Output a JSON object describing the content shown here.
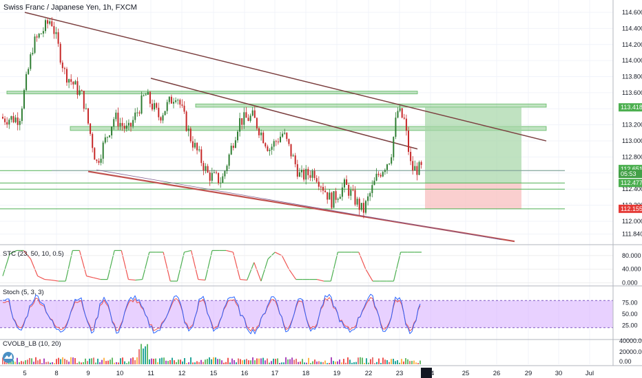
{
  "title": "Swiss Franc / Japanese Yen, 1h, FXCM",
  "colors": {
    "up": "#26a69a",
    "down": "#ef5350",
    "bull_candle": "#2e7d32",
    "bear_candle": "#c62828",
    "trendline": "#7b3f3f",
    "support_line": "#c0504d",
    "zone": "#4caf50",
    "target_zone": "#a5d6a7",
    "stop_zone": "#f8bbbb",
    "stc_up": "#4caf50",
    "stc_down": "#ef5350",
    "stoch_k": "#2962ff",
    "stoch_d": "#ef5350",
    "stoch_band": "#d9b3ff"
  },
  "chart_data": [
    {
      "type": "candlestick",
      "title": "Swiss Franc / Japanese Yen, 1h, FXCM",
      "x_tick_labels": [
        "5",
        "8",
        "9",
        "10",
        "11",
        "12",
        "15",
        "16",
        "17",
        "18",
        "19",
        "22",
        "23",
        "24",
        "25",
        "26",
        "29",
        "30",
        "Jul"
      ],
      "y_tick_labels": [
        "114.600",
        "114.400",
        "114.200",
        "114.000",
        "113.800",
        "113.600",
        "113.400",
        "113.200",
        "113.000",
        "112.800",
        "112.600",
        "112.400",
        "112.200",
        "112.000",
        "111.840"
      ],
      "ylim": [
        111.76,
        114.72
      ],
      "anchors": [
        [
          "5",
          113.28
        ],
        [
          "5",
          114.2
        ],
        [
          "8",
          114.52
        ],
        [
          "8",
          113.85
        ],
        [
          "9",
          113.55
        ],
        [
          "9",
          112.72
        ],
        [
          "10",
          113.3
        ],
        [
          "10",
          113.12
        ],
        [
          "11",
          113.58
        ],
        [
          "11",
          113.3
        ],
        [
          "12",
          113.6
        ],
        [
          "12",
          113.05
        ],
        [
          "15",
          112.58
        ],
        [
          "15",
          112.5
        ],
        [
          "16",
          113.25
        ],
        [
          "16",
          113.3
        ],
        [
          "17",
          112.9
        ],
        [
          "17",
          113.1
        ],
        [
          "18",
          112.55
        ],
        [
          "18",
          112.62
        ],
        [
          "19",
          112.25
        ],
        [
          "19",
          112.45
        ],
        [
          "22",
          112.12
        ],
        [
          "22",
          112.55
        ],
        [
          "23",
          112.8
        ],
        [
          "23",
          113.38
        ],
        [
          "23",
          113.25
        ],
        [
          "23",
          112.65
        ]
      ],
      "trendlines": [
        {
          "from": [
            "5",
            114.6
          ],
          "to": [
            "29",
            113.0
          ]
        },
        {
          "from": [
            "11",
            113.78
          ],
          "to": [
            "23",
            112.9
          ]
        },
        {
          "from": [
            "9",
            112.62
          ],
          "to": [
            "26",
            111.75
          ]
        }
      ],
      "horizontal_levels": [
        112.63,
        112.477,
        112.4,
        112.155
      ],
      "zones": [
        {
          "from": 113.42,
          "to": 113.46,
          "x_from": "15",
          "x_to": "29"
        },
        {
          "from": 113.13,
          "to": 113.18,
          "x_from": "9",
          "x_to": "29"
        },
        {
          "from": 113.6,
          "to": 113.62,
          "x_from": "5",
          "x_to": "23"
        }
      ],
      "position": {
        "entry": 112.477,
        "target": 113.418,
        "stop": 112.155,
        "x_from": "23",
        "x_to": "26"
      },
      "price_tags": [
        {
          "price": 113.418,
          "label": "113.418",
          "color": "#4caf50"
        },
        {
          "price": 112.651,
          "label": "112.651",
          "color": "#4caf50"
        },
        {
          "price": 112.59,
          "label": "05:53",
          "color": "#43a047"
        },
        {
          "price": 112.477,
          "label": "112.477",
          "color": "#4caf50"
        },
        {
          "price": 112.155,
          "label": "112.155",
          "color": "#e53935"
        }
      ]
    },
    {
      "type": "line",
      "title": "STC (23, 50, 10, 0.5)",
      "y_tick_labels": [
        "80.000",
        "40.000",
        "0.000"
      ],
      "ylim": [
        -5,
        100
      ],
      "values": [
        20,
        85,
        95,
        95,
        70,
        20,
        10,
        8,
        5,
        5,
        95,
        95,
        20,
        15,
        10,
        10,
        95,
        95,
        10,
        8,
        10,
        90,
        90,
        90,
        5,
        5,
        90,
        95,
        10,
        8,
        95,
        95,
        95,
        90,
        10,
        8,
        60,
        5,
        70,
        90,
        80,
        40,
        10,
        10,
        10,
        10,
        5,
        5,
        90,
        90,
        90,
        90,
        40,
        5,
        5,
        5,
        5,
        90,
        90,
        90,
        90
      ]
    },
    {
      "type": "line",
      "title": "Stoch (5, 3, 3)",
      "y_tick_labels": [
        "75.00",
        "50.00",
        "25.00"
      ],
      "ylim": [
        0,
        100
      ],
      "band": [
        20,
        80
      ]
    },
    {
      "type": "bar",
      "title": "CVOLB_LB (10, 20)",
      "y_tick_labels": [
        "40000.00",
        "20000.00",
        "0.00"
      ],
      "ylim": [
        0,
        48000
      ]
    }
  ]
}
